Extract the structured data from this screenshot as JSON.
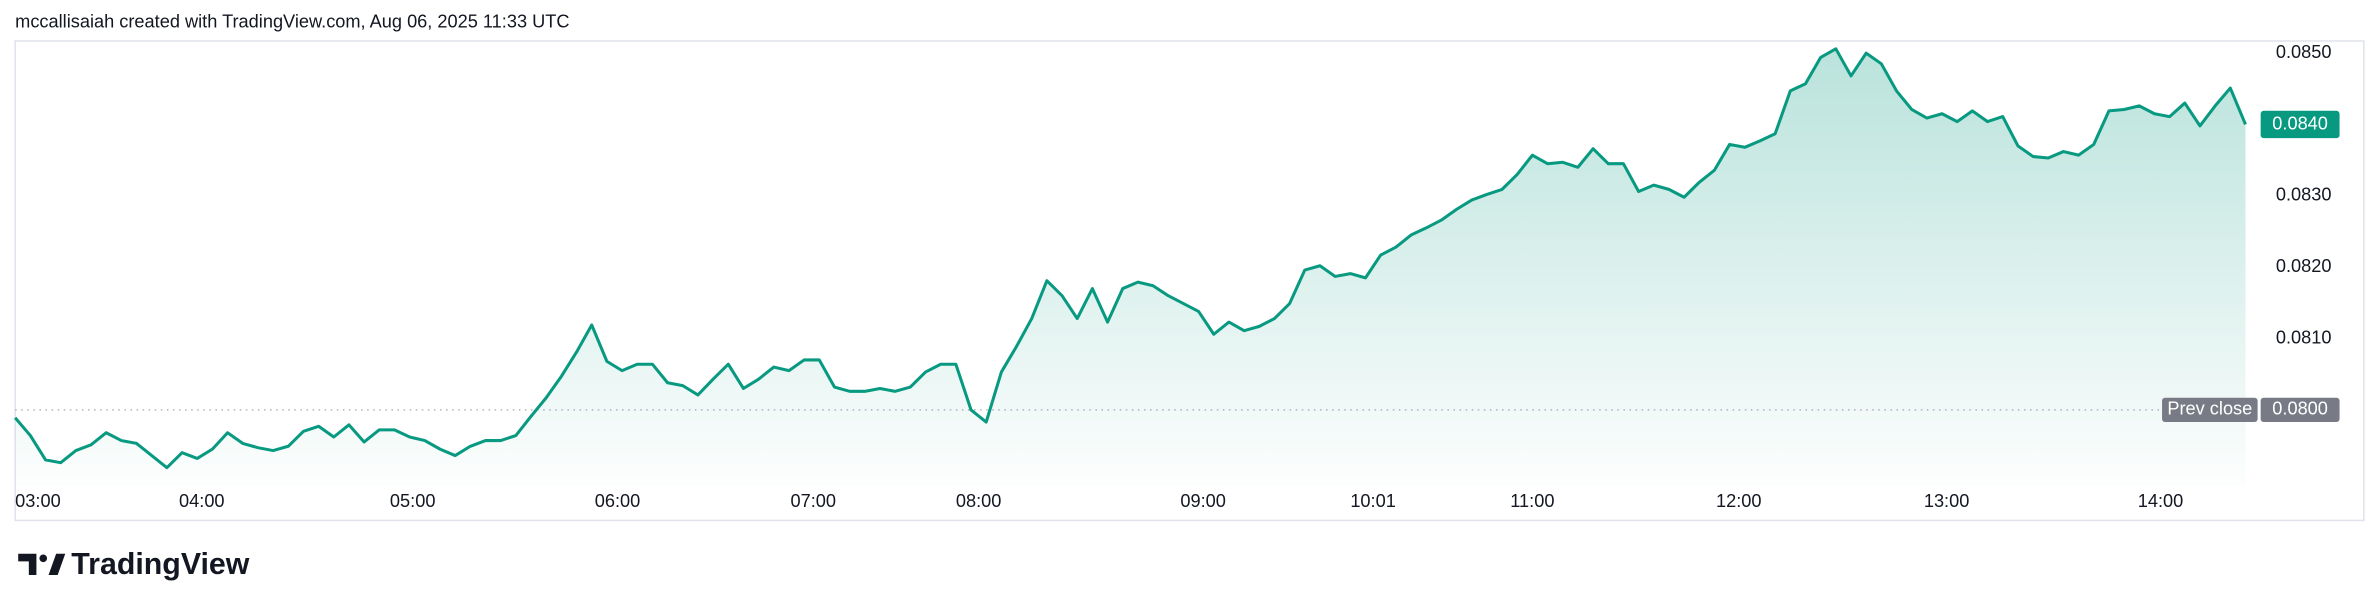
{
  "chart_data": {
    "type": "line",
    "header": "mccallisaiah created with TradingView.com, Aug 06, 2025 11:33 UTC",
    "brand": "TradingView",
    "series": [
      {
        "color": "#089981",
        "values": [
          0.07989,
          0.07964,
          0.0793,
          0.07926,
          0.07943,
          0.07951,
          0.07968,
          0.07957,
          0.07953,
          0.07936,
          0.07919,
          0.0794,
          0.07932,
          0.07945,
          0.07968,
          0.07953,
          0.07947,
          0.07943,
          0.07949,
          0.0797,
          0.07977,
          0.07962,
          0.07979,
          0.07955,
          0.07972,
          0.07972,
          0.07962,
          0.07957,
          0.07945,
          0.07936,
          0.07949,
          0.07957,
          0.07957,
          0.07964,
          0.07991,
          0.08017,
          0.08047,
          0.08081,
          0.08119,
          0.08068,
          0.08055,
          0.08064,
          0.08064,
          0.08038,
          0.08034,
          0.08021,
          0.08043,
          0.08064,
          0.0803,
          0.08043,
          0.0806,
          0.08055,
          0.0807,
          0.0807,
          0.08032,
          0.08026,
          0.08026,
          0.0803,
          0.08026,
          0.08032,
          0.08053,
          0.08064,
          0.08064,
          0.08,
          0.07983,
          0.08053,
          0.08089,
          0.08128,
          0.08181,
          0.0816,
          0.08128,
          0.0817,
          0.08123,
          0.0817,
          0.08179,
          0.08174,
          0.0816,
          0.08149,
          0.08138,
          0.08106,
          0.08123,
          0.08111,
          0.08117,
          0.08128,
          0.08149,
          0.08196,
          0.08202,
          0.08187,
          0.08191,
          0.08185,
          0.08217,
          0.08228,
          0.08245,
          0.08255,
          0.08266,
          0.08281,
          0.08294,
          0.08302,
          0.08309,
          0.0833,
          0.08357,
          0.08345,
          0.08347,
          0.0834,
          0.08366,
          0.08345,
          0.08345,
          0.08306,
          0.08315,
          0.08309,
          0.08298,
          0.08319,
          0.08336,
          0.08372,
          0.08368,
          0.08377,
          0.08387,
          0.08447,
          0.08457,
          0.08494,
          0.08506,
          0.08468,
          0.085,
          0.08485,
          0.08447,
          0.08421,
          0.08409,
          0.08415,
          0.08404,
          0.08419,
          0.08404,
          0.08411,
          0.0837,
          0.08355,
          0.08353,
          0.08362,
          0.08357,
          0.08372,
          0.08419,
          0.08421,
          0.08426,
          0.08415,
          0.08411,
          0.0843,
          0.08398,
          0.08426,
          0.08451,
          0.084
        ]
      }
    ],
    "xlim": [
      0,
      147.5
    ],
    "xticks": [
      {
        "value": 1.5,
        "label": "03:00"
      },
      {
        "value": 12.3,
        "label": "04:00"
      },
      {
        "value": 26.2,
        "label": "05:00"
      },
      {
        "value": 39.7,
        "label": "06:00"
      },
      {
        "value": 52.6,
        "label": "07:00"
      },
      {
        "value": 63.5,
        "label": "08:00"
      },
      {
        "value": 78.3,
        "label": "09:00"
      },
      {
        "value": 89.5,
        "label": "10:01"
      },
      {
        "value": 100,
        "label": "11:00"
      },
      {
        "value": 113.6,
        "label": "12:00"
      },
      {
        "value": 127.3,
        "label": "13:00"
      },
      {
        "value": 141.4,
        "label": "14:00"
      }
    ],
    "ylim": [
      0.07894,
      0.08517
    ],
    "yticks": [
      {
        "value": 0.081,
        "label": "0.0810"
      },
      {
        "value": 0.082,
        "label": "0.0820"
      },
      {
        "value": 0.083,
        "label": "0.0830"
      },
      {
        "value": 0.085,
        "label": "0.0850"
      }
    ],
    "last_price": {
      "value": 0.084,
      "label": "0.0840"
    },
    "prev_close": {
      "name": "Prev close",
      "value": 0.08,
      "label": "0.0800"
    }
  }
}
